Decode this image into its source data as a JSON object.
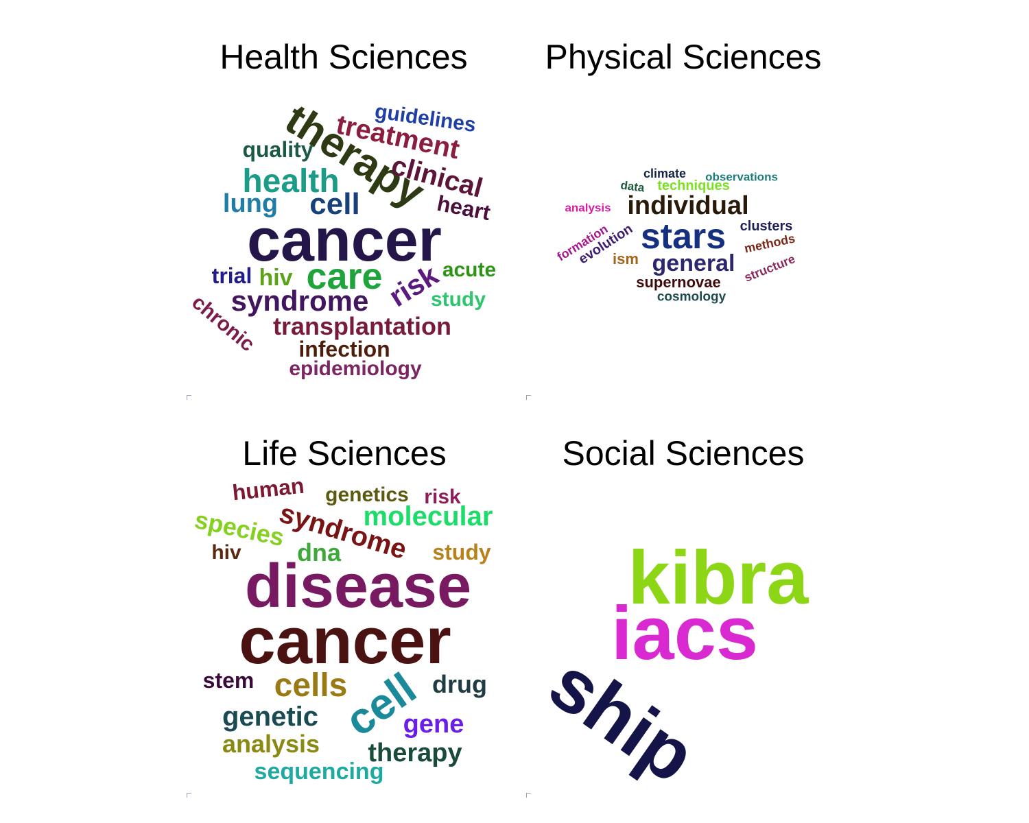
{
  "panels": [
    {
      "title": "Health Sciences",
      "words": [
        {
          "text": "therapy",
          "color": "#2d3a14"
        },
        {
          "text": "treatment",
          "color": "#8b1e3f"
        },
        {
          "text": "guidelines",
          "color": "#1f3fa5"
        },
        {
          "text": "quality",
          "color": "#1d5a46"
        },
        {
          "text": "clinical",
          "color": "#5c1438"
        },
        {
          "text": "health",
          "color": "#1b9c86"
        },
        {
          "text": "lung",
          "color": "#1f7ea8"
        },
        {
          "text": "cell",
          "color": "#18407a"
        },
        {
          "text": "heart",
          "color": "#4a0f3d"
        },
        {
          "text": "cancer",
          "color": "#241648"
        },
        {
          "text": "trial",
          "color": "#231d8c"
        },
        {
          "text": "hiv",
          "color": "#5da31a"
        },
        {
          "text": "care",
          "color": "#1fa33b"
        },
        {
          "text": "acute",
          "color": "#2e9416"
        },
        {
          "text": "syndrome",
          "color": "#42165e"
        },
        {
          "text": "risk",
          "color": "#5a1a7e"
        },
        {
          "text": "study",
          "color": "#2fc46e"
        },
        {
          "text": "chronic",
          "color": "#7b1c4c"
        },
        {
          "text": "transplantation",
          "color": "#781a3c"
        },
        {
          "text": "infection",
          "color": "#4e1e0c"
        },
        {
          "text": "epidemiology",
          "color": "#7c2563"
        }
      ]
    },
    {
      "title": "Physical Sciences",
      "words": [
        {
          "text": "climate",
          "color": "#172447"
        },
        {
          "text": "observations",
          "color": "#1e7d7a"
        },
        {
          "text": "data",
          "color": "#1d5a3e"
        },
        {
          "text": "techniques",
          "color": "#7ce025"
        },
        {
          "text": "analysis",
          "color": "#d61ca0"
        },
        {
          "text": "individual",
          "color": "#2a1a0a"
        },
        {
          "text": "stars",
          "color": "#14307e"
        },
        {
          "text": "clusters",
          "color": "#1e1e5a"
        },
        {
          "text": "formation",
          "color": "#a4168e"
        },
        {
          "text": "evolution",
          "color": "#3e1c6e"
        },
        {
          "text": "methods",
          "color": "#7a2a1a"
        },
        {
          "text": "ism",
          "color": "#a4641a"
        },
        {
          "text": "general",
          "color": "#2c2670"
        },
        {
          "text": "structure",
          "color": "#8a2a5e"
        },
        {
          "text": "supernovae",
          "color": "#3e0a0a"
        },
        {
          "text": "cosmology",
          "color": "#1d4a4e"
        }
      ]
    },
    {
      "title": "Life Sciences",
      "words": [
        {
          "text": "human",
          "color": "#7c1830"
        },
        {
          "text": "genetics",
          "color": "#5c5a10"
        },
        {
          "text": "risk",
          "color": "#8e1e5a"
        },
        {
          "text": "syndrome",
          "color": "#781414"
        },
        {
          "text": "molecular",
          "color": "#1edc6a"
        },
        {
          "text": "species",
          "color": "#86d022"
        },
        {
          "text": "hiv",
          "color": "#5a2a10"
        },
        {
          "text": "dna",
          "color": "#3ea83a"
        },
        {
          "text": "study",
          "color": "#b8821a"
        },
        {
          "text": "disease",
          "color": "#781a62"
        },
        {
          "text": "cancer",
          "color": "#4a1210"
        },
        {
          "text": "stem",
          "color": "#3a0a3a"
        },
        {
          "text": "cells",
          "color": "#9a7a14"
        },
        {
          "text": "cell",
          "color": "#1a8a9a"
        },
        {
          "text": "drug",
          "color": "#1e3c42"
        },
        {
          "text": "genetic",
          "color": "#1a4a52"
        },
        {
          "text": "gene",
          "color": "#6a1ee8"
        },
        {
          "text": "analysis",
          "color": "#8a8a12"
        },
        {
          "text": "therapy",
          "color": "#1a4a3a"
        },
        {
          "text": "sequencing",
          "color": "#1eaaa0"
        }
      ]
    },
    {
      "title": "Social Sciences",
      "words": [
        {
          "text": "kibra",
          "color": "#8cd616"
        },
        {
          "text": "iacs",
          "color": "#d82ad0"
        },
        {
          "text": "ship",
          "color": "#141448"
        }
      ]
    }
  ]
}
